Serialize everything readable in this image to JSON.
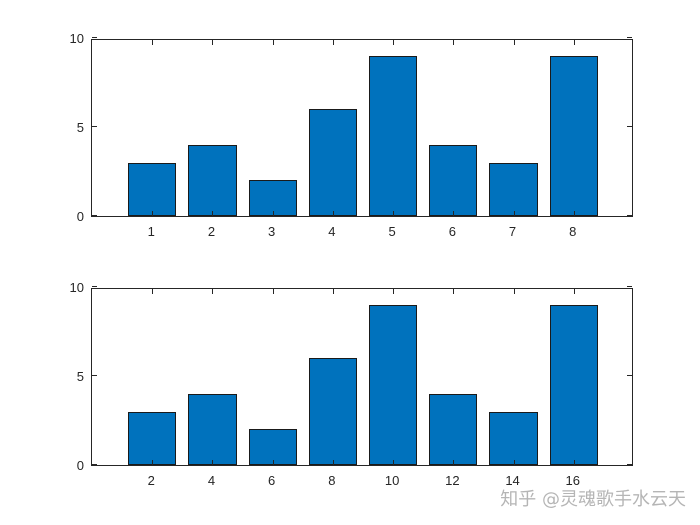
{
  "chart_data": [
    {
      "type": "bar",
      "title": "",
      "xlabel": "",
      "ylabel": "",
      "categories": [
        "1",
        "2",
        "3",
        "4",
        "5",
        "6",
        "7",
        "8"
      ],
      "x": [
        1,
        2,
        3,
        4,
        5,
        6,
        7,
        8
      ],
      "values": [
        3,
        4,
        2,
        6,
        9,
        4,
        3,
        9
      ],
      "xlim": [
        0,
        9
      ],
      "ylim": [
        0,
        10
      ],
      "yticks": [
        0,
        5,
        10
      ],
      "xticks": [
        1,
        2,
        3,
        4,
        5,
        6,
        7,
        8
      ],
      "grid": false,
      "bar_color": "#0072BD"
    },
    {
      "type": "bar",
      "title": "",
      "xlabel": "",
      "ylabel": "",
      "categories": [
        "2",
        "4",
        "6",
        "8",
        "10",
        "12",
        "14",
        "16"
      ],
      "x": [
        2,
        4,
        6,
        8,
        10,
        12,
        14,
        16
      ],
      "values": [
        3,
        4,
        2,
        6,
        9,
        4,
        3,
        9
      ],
      "xlim": [
        0,
        18
      ],
      "ylim": [
        0,
        10
      ],
      "yticks": [
        0,
        5,
        10
      ],
      "xticks": [
        2,
        4,
        6,
        8,
        10,
        12,
        14,
        16
      ],
      "grid": false,
      "bar_color": "#0072BD"
    }
  ],
  "watermark": "知乎 @灵魂歌手水云天"
}
